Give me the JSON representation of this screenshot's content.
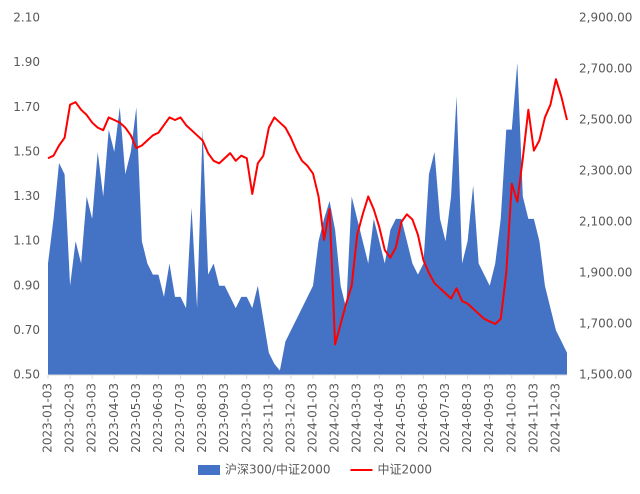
{
  "chart_data": {
    "type": "area-line",
    "categories": [
      "2023-01-03",
      null,
      null,
      null,
      "2023-02-03",
      null,
      null,
      null,
      "2023-03-03",
      null,
      null,
      null,
      "2023-04-03",
      null,
      null,
      null,
      "2023-05-03",
      null,
      null,
      null,
      "2023-06-03",
      null,
      null,
      null,
      "2023-07-03",
      null,
      null,
      null,
      "2023-08-03",
      null,
      null,
      null,
      "2023-09-03",
      null,
      null,
      null,
      "2023-10-03",
      null,
      null,
      null,
      "2023-11-03",
      null,
      null,
      null,
      "2023-12-03",
      null,
      null,
      null,
      "2024-01-03",
      null,
      null,
      null,
      "2024-02-03",
      null,
      null,
      null,
      "2024-03-03",
      null,
      null,
      null,
      "2024-04-03",
      null,
      null,
      null,
      "2024-05-03",
      null,
      null,
      null,
      "2024-06-03",
      null,
      null,
      null,
      "2024-07-03",
      null,
      null,
      null,
      "2024-08-03",
      null,
      null,
      null,
      "2024-09-03",
      null,
      null,
      null,
      "2024-10-03",
      null,
      null,
      null,
      "2024-11-03",
      null,
      null,
      null,
      "2024-12-03",
      null,
      null
    ],
    "series": [
      {
        "name": "沪深300/中证2000",
        "color": "#4472c4",
        "kind": "area",
        "values": [
          1.0,
          1.2,
          1.45,
          1.4,
          0.9,
          1.1,
          1.0,
          1.3,
          1.2,
          1.5,
          1.3,
          1.6,
          1.5,
          1.7,
          1.4,
          1.5,
          1.7,
          1.1,
          1.0,
          0.95,
          0.95,
          0.85,
          1.0,
          0.85,
          0.85,
          0.8,
          1.25,
          0.8,
          1.6,
          0.95,
          1.0,
          0.9,
          0.9,
          0.85,
          0.8,
          0.85,
          0.85,
          0.8,
          0.9,
          0.75,
          0.6,
          0.55,
          0.52,
          0.65,
          0.7,
          0.75,
          0.8,
          0.85,
          0.9,
          1.1,
          1.2,
          1.28,
          1.15,
          0.9,
          0.8,
          1.3,
          1.2,
          1.1,
          1.0,
          1.2,
          1.1,
          1.0,
          1.15,
          1.2,
          1.2,
          1.1,
          1.0,
          0.95,
          1.0,
          1.4,
          1.5,
          1.2,
          1.1,
          1.3,
          1.75,
          1.0,
          1.1,
          1.35,
          1.0,
          0.95,
          0.9,
          1.0,
          1.2,
          1.6,
          1.6,
          1.9,
          1.3,
          1.2,
          1.2,
          1.1,
          0.9,
          0.8,
          0.7,
          0.65,
          0.6
        ]
      },
      {
        "name": "中证2000",
        "color": "#ff0000",
        "kind": "line",
        "axis": "y2",
        "values": [
          2350,
          2360,
          2400,
          2430,
          2560,
          2570,
          2540,
          2520,
          2490,
          2470,
          2460,
          2510,
          2500,
          2490,
          2470,
          2440,
          2390,
          2400,
          2420,
          2440,
          2450,
          2480,
          2510,
          2500,
          2510,
          2480,
          2460,
          2440,
          2420,
          2370,
          2340,
          2330,
          2350,
          2370,
          2340,
          2360,
          2350,
          2210,
          2330,
          2360,
          2470,
          2510,
          2490,
          2470,
          2430,
          2380,
          2340,
          2320,
          2290,
          2200,
          2030,
          2150,
          1620,
          1700,
          1780,
          1850,
          2050,
          2130,
          2200,
          2150,
          2080,
          1990,
          1960,
          2000,
          2100,
          2130,
          2110,
          2050,
          1950,
          1900,
          1860,
          1840,
          1820,
          1800,
          1840,
          1790,
          1780,
          1760,
          1740,
          1720,
          1710,
          1700,
          1720,
          1900,
          2250,
          2180,
          2350,
          2540,
          2380,
          2420,
          2510,
          2560,
          2660,
          2590,
          2500
        ]
      }
    ],
    "ylim": [
      0.5,
      2.1
    ],
    "yticks": [
      {
        "value": 0.5,
        "label": "0.50"
      },
      {
        "value": 0.7,
        "label": "0.70"
      },
      {
        "value": 0.9,
        "label": "0.90"
      },
      {
        "value": 1.1,
        "label": "1.10"
      },
      {
        "value": 1.3,
        "label": "1.30"
      },
      {
        "value": 1.5,
        "label": "1.50"
      },
      {
        "value": 1.7,
        "label": "1.70"
      },
      {
        "value": 1.9,
        "label": "1.90"
      },
      {
        "value": 2.1,
        "label": "2.10"
      }
    ],
    "y2lim": [
      1500,
      2900
    ],
    "y2ticks": [
      {
        "value": 1500,
        "label": "1,500.00"
      },
      {
        "value": 1700,
        "label": "1,700.00"
      },
      {
        "value": 1900,
        "label": "1,900.00"
      },
      {
        "value": 2100,
        "label": "2,100.00"
      },
      {
        "value": 2300,
        "label": "2,300.00"
      },
      {
        "value": 2500,
        "label": "2,500.00"
      },
      {
        "value": 2700,
        "label": "2,700.00"
      },
      {
        "value": 2900,
        "label": "2,900.00"
      }
    ],
    "legend": "bottom"
  }
}
